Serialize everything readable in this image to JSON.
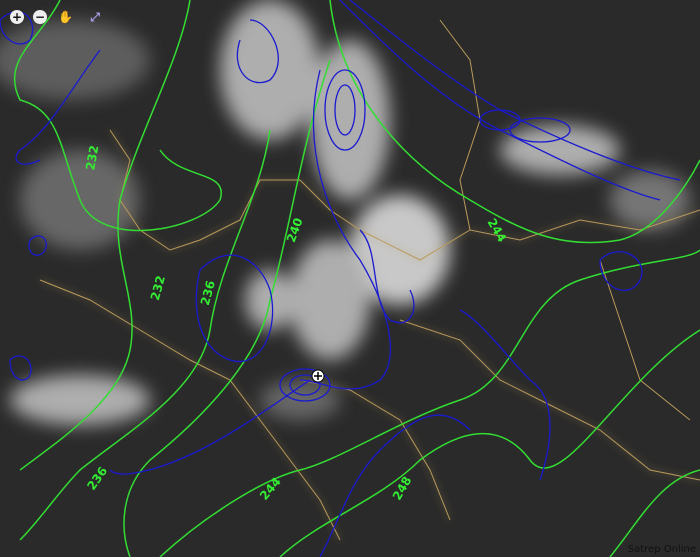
{
  "toolbar": {
    "zoom_in": "+",
    "zoom_out": "−",
    "pan": "✋",
    "fullscreen": "⤢"
  },
  "contour_labels": [
    "232",
    "232",
    "236",
    "240",
    "244",
    "236",
    "244",
    "248"
  ],
  "credit": "Satrep Online",
  "colors": {
    "background": "#2a2a2a",
    "clouds": "#d8d8d8",
    "borders": "#b89a5a",
    "blue_contours": "#1a1ad0",
    "green_contours": "#33dd33"
  }
}
